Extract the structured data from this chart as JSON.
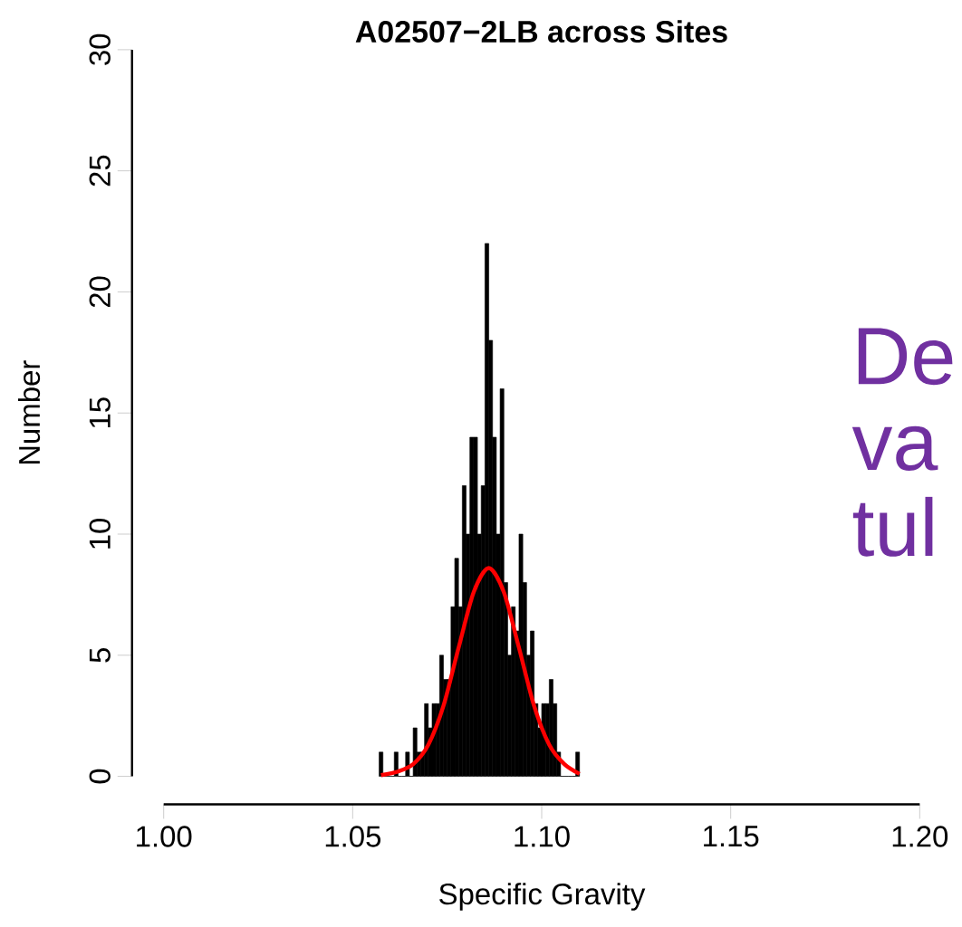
{
  "chart_data": {
    "type": "histogram",
    "title": "A02507−2LB across Sites",
    "xlabel": "Specific Gravity",
    "ylabel": "Number",
    "xlim": [
      1.0,
      1.2
    ],
    "xticks": [
      {
        "value": 1.0,
        "label": "1.00"
      },
      {
        "value": 1.05,
        "label": "1.05"
      },
      {
        "value": 1.1,
        "label": "1.10"
      },
      {
        "value": 1.15,
        "label": "1.15"
      },
      {
        "value": 1.2,
        "label": "1.20"
      }
    ],
    "ylim": [
      0,
      30
    ],
    "yticks": [
      0,
      5,
      10,
      15,
      20,
      25,
      30
    ],
    "series": [
      {
        "color": "#000000",
        "bins": [
          1.057,
          1.058,
          1.059,
          1.06,
          1.061,
          1.062,
          1.063,
          1.064,
          1.065,
          1.066,
          1.067,
          1.068,
          1.069,
          1.07,
          1.071,
          1.072,
          1.073,
          1.074,
          1.075,
          1.076,
          1.077,
          1.078,
          1.079,
          1.08,
          1.081,
          1.082,
          1.083,
          1.084,
          1.085,
          1.086,
          1.087,
          1.088,
          1.089,
          1.09,
          1.091,
          1.092,
          1.093,
          1.094,
          1.095,
          1.096,
          1.097,
          1.098,
          1.099,
          1.1,
          1.101,
          1.102,
          1.103,
          1.104,
          1.105,
          1.106,
          1.107,
          1.108,
          1.109,
          1.11
        ],
        "values": [
          1,
          0,
          0,
          0,
          1,
          0,
          0,
          1,
          0,
          2,
          1,
          1,
          3,
          2,
          3,
          3,
          5,
          4,
          4,
          7,
          9,
          7,
          12,
          10,
          14,
          14,
          10,
          12,
          22,
          18,
          14,
          10,
          16,
          8,
          5,
          7,
          6,
          10,
          8,
          5,
          6,
          3,
          2,
          3,
          3,
          4,
          3,
          1,
          0,
          0,
          0,
          0,
          1
        ]
      },
      {
        "type": "line",
        "color": "#ff0000",
        "x": [
          1.0575,
          1.062,
          1.066,
          1.07,
          1.074,
          1.078,
          1.082,
          1.086,
          1.09,
          1.094,
          1.098,
          1.102,
          1.106,
          1.11
        ],
        "values": [
          0.05,
          0.2,
          0.5,
          1.3,
          2.9,
          5.3,
          7.6,
          8.6,
          7.6,
          5.3,
          2.9,
          1.3,
          0.5,
          0.1
        ]
      }
    ],
    "annotations": [
      "De",
      "va",
      "tul"
    ]
  }
}
